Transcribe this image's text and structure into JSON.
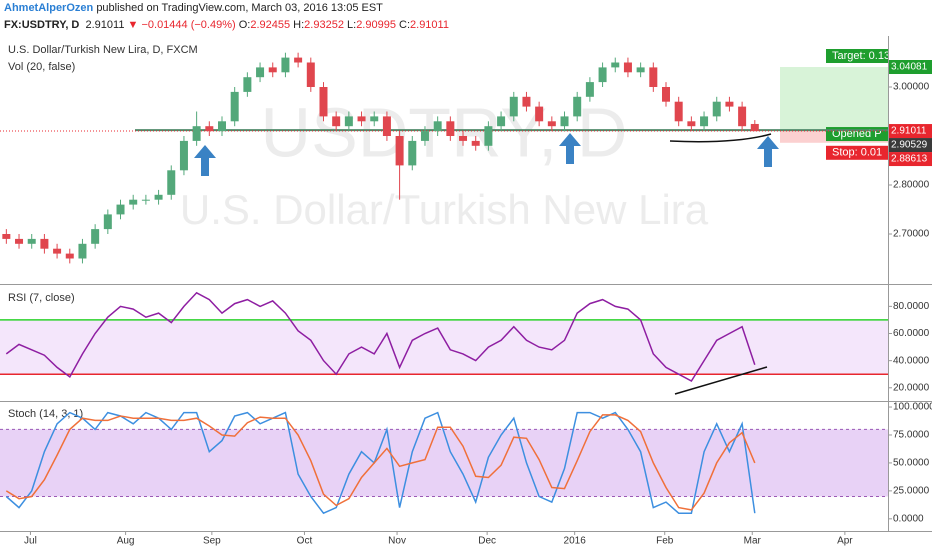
{
  "header": {
    "author": "AhmetAlperOzen",
    "published": "published on TradingView.com, March 03, 2016 13:05 EST",
    "symbol": "FX:USDTRY, D",
    "last": "2.91011",
    "change": "−0.01444 (−0.49%)",
    "ohlc": [
      {
        "label": "O:",
        "value": "2.92455"
      },
      {
        "label": "H:",
        "value": "2.93252"
      },
      {
        "label": "L:",
        "value": "2.90995"
      },
      {
        "label": "C:",
        "value": "2.91011"
      }
    ]
  },
  "chart_data": [
    {
      "type": "candlestick",
      "title": "U.S. Dollar/Turkish New Lira, D, FXCM",
      "subtitle": "Vol (20, false)",
      "watermark": [
        "USDTRY, D",
        "U.S. Dollar/Turkish New Lira"
      ],
      "up_color": "#53a87a",
      "down_color": "#e0464e",
      "xlim": [
        0,
        70
      ],
      "ylim": [
        2.6,
        3.1
      ],
      "yticks": [
        {
          "value": 2.7,
          "label": "2.70000"
        },
        {
          "value": 2.8,
          "label": "2.80000"
        },
        {
          "value": 3.0,
          "label": "3.00000"
        }
      ],
      "open": [
        2.7,
        2.69,
        2.68,
        2.69,
        2.67,
        2.66,
        2.65,
        2.68,
        2.71,
        2.74,
        2.76,
        2.77,
        2.77,
        2.78,
        2.83,
        2.89,
        2.92,
        2.91,
        2.93,
        2.99,
        3.02,
        3.04,
        3.03,
        3.06,
        3.05,
        3.0,
        2.94,
        2.92,
        2.94,
        2.93,
        2.94,
        2.9,
        2.84,
        2.89,
        2.91,
        2.93,
        2.9,
        2.89,
        2.88,
        2.92,
        2.94,
        2.98,
        2.96,
        2.93,
        2.92,
        2.94,
        2.98,
        3.01,
        3.04,
        3.05,
        3.03,
        3.04,
        3.0,
        2.97,
        2.93,
        2.92,
        2.94,
        2.97,
        2.96,
        2.92455
      ],
      "high": [
        2.71,
        2.7,
        2.7,
        2.7,
        2.68,
        2.67,
        2.69,
        2.72,
        2.75,
        2.77,
        2.78,
        2.78,
        2.79,
        2.84,
        2.9,
        2.95,
        2.93,
        2.94,
        3.0,
        3.03,
        3.05,
        3.05,
        3.07,
        3.07,
        3.06,
        3.01,
        2.95,
        2.95,
        2.95,
        2.95,
        2.95,
        2.91,
        2.9,
        2.92,
        2.94,
        2.94,
        2.91,
        2.9,
        2.93,
        2.95,
        2.99,
        2.99,
        2.97,
        2.94,
        2.95,
        2.99,
        3.02,
        3.05,
        3.06,
        3.06,
        3.05,
        3.05,
        3.01,
        2.98,
        2.94,
        2.95,
        2.98,
        2.98,
        2.97,
        2.93252
      ],
      "low": [
        2.68,
        2.67,
        2.67,
        2.66,
        2.65,
        2.64,
        2.64,
        2.67,
        2.7,
        2.73,
        2.75,
        2.76,
        2.76,
        2.77,
        2.82,
        2.88,
        2.9,
        2.9,
        2.92,
        2.98,
        3.01,
        3.02,
        3.02,
        3.04,
        2.99,
        2.93,
        2.91,
        2.91,
        2.92,
        2.92,
        2.89,
        2.77,
        2.83,
        2.88,
        2.9,
        2.89,
        2.88,
        2.87,
        2.87,
        2.91,
        2.93,
        2.95,
        2.92,
        2.91,
        2.91,
        2.93,
        2.97,
        3.0,
        3.03,
        3.02,
        3.02,
        2.99,
        2.96,
        2.92,
        2.91,
        2.91,
        2.93,
        2.95,
        2.91,
        2.90995
      ],
      "close": [
        2.69,
        2.68,
        2.69,
        2.67,
        2.66,
        2.65,
        2.68,
        2.71,
        2.74,
        2.76,
        2.77,
        2.77,
        2.78,
        2.83,
        2.89,
        2.92,
        2.91,
        2.93,
        2.99,
        3.02,
        3.04,
        3.03,
        3.06,
        3.05,
        3.0,
        2.94,
        2.92,
        2.94,
        2.93,
        2.94,
        2.9,
        2.84,
        2.89,
        2.91,
        2.93,
        2.9,
        2.89,
        2.88,
        2.92,
        2.94,
        2.98,
        2.96,
        2.93,
        2.92,
        2.94,
        2.98,
        3.01,
        3.04,
        3.05,
        3.03,
        3.04,
        3.0,
        2.97,
        2.93,
        2.92,
        2.94,
        2.97,
        2.96,
        2.92,
        2.91011
      ],
      "support_line": 2.912,
      "position": {
        "target": 3.04081,
        "entry": 2.91011,
        "stop": 2.88613,
        "labels": [
          "Target: 0.13",
          "Opened P",
          "Stop: 0.01"
        ]
      },
      "price_tags": [
        {
          "value": 3.04081,
          "color": "#1e9e2e"
        },
        {
          "value": 2.91011,
          "color": "#e8262e"
        },
        {
          "value": 2.90529,
          "color": "#3a3a3a"
        },
        {
          "value": 2.88613,
          "color": "#e8262e"
        }
      ]
    },
    {
      "type": "line",
      "title": "RSI (7, close)",
      "xlim": [
        0,
        70
      ],
      "ylim": [
        11,
        95
      ],
      "yticks": [
        {
          "value": 20,
          "label": "20.0000"
        },
        {
          "value": 40,
          "label": "40.0000"
        },
        {
          "value": 60,
          "label": "60.0000"
        },
        {
          "value": 80,
          "label": "80.0000"
        }
      ],
      "bands": [
        {
          "value": 70,
          "color": "#2bd32b"
        },
        {
          "value": 30,
          "color": "#e8262e"
        }
      ],
      "band_fill": "#f4e6fb",
      "band_dash": false,
      "series": [
        {
          "name": "RSI",
          "color": "#8e1ea2",
          "values": [
            45,
            52,
            48,
            44,
            35,
            28,
            45,
            60,
            72,
            80,
            78,
            72,
            75,
            68,
            80,
            90,
            85,
            75,
            82,
            85,
            80,
            84,
            75,
            62,
            55,
            40,
            30,
            45,
            50,
            45,
            60,
            35,
            55,
            60,
            64,
            48,
            45,
            40,
            50,
            55,
            65,
            55,
            50,
            48,
            55,
            75,
            82,
            85,
            80,
            78,
            70,
            45,
            35,
            30,
            25,
            40,
            55,
            60,
            65,
            37
          ]
        }
      ]
    },
    {
      "type": "line",
      "title": "Stoch (14, 3, 1)",
      "xlim": [
        0,
        70
      ],
      "ylim": [
        -10,
        104.5
      ],
      "yticks": [
        {
          "value": 0,
          "label": "0.0000"
        },
        {
          "value": 25,
          "label": "25.0000"
        },
        {
          "value": 50,
          "label": "50.0000"
        },
        {
          "value": 75,
          "label": "75.0000"
        },
        {
          "value": 100,
          "label": "100.0000"
        }
      ],
      "bands": [
        {
          "value": 80,
          "color": "#9b59b6"
        },
        {
          "value": 20,
          "color": "#9b59b6"
        }
      ],
      "band_fill": "#e8d2f6",
      "band_dash": true,
      "xticks": [
        {
          "value": 2.4,
          "label": "Jul"
        },
        {
          "value": 9.9,
          "label": "Aug"
        },
        {
          "value": 16.7,
          "label": "Sep"
        },
        {
          "value": 24.0,
          "label": "Oct"
        },
        {
          "value": 31.3,
          "label": "Nov"
        },
        {
          "value": 38.4,
          "label": "Dec"
        },
        {
          "value": 45.3,
          "label": "2016"
        },
        {
          "value": 52.4,
          "label": "Feb"
        },
        {
          "value": 59.3,
          "label": "Mar"
        },
        {
          "value": 66.6,
          "label": "Apr"
        }
      ],
      "series": [
        {
          "name": "%K",
          "color": "#3d8fe0",
          "values": [
            20,
            10,
            25,
            60,
            85,
            95,
            90,
            80,
            95,
            92,
            85,
            95,
            90,
            80,
            95,
            95,
            60,
            70,
            92,
            95,
            85,
            90,
            95,
            40,
            20,
            5,
            10,
            40,
            60,
            50,
            80,
            10,
            60,
            90,
            95,
            60,
            40,
            15,
            55,
            75,
            90,
            50,
            20,
            15,
            45,
            95,
            95,
            90,
            95,
            80,
            60,
            10,
            15,
            5,
            5,
            60,
            85,
            60,
            85,
            5
          ]
        },
        {
          "name": "%D",
          "color": "#f0703a",
          "values": [
            25,
            18,
            20,
            35,
            57,
            80,
            90,
            88,
            88,
            92,
            90,
            90,
            90,
            88,
            88,
            90,
            83,
            75,
            74,
            86,
            91,
            90,
            90,
            75,
            52,
            22,
            12,
            18,
            37,
            50,
            63,
            47,
            50,
            53,
            82,
            82,
            65,
            38,
            37,
            48,
            73,
            72,
            53,
            28,
            27,
            52,
            78,
            93,
            93,
            88,
            78,
            50,
            28,
            10,
            8,
            23,
            50,
            68,
            77,
            50
          ]
        }
      ]
    }
  ]
}
